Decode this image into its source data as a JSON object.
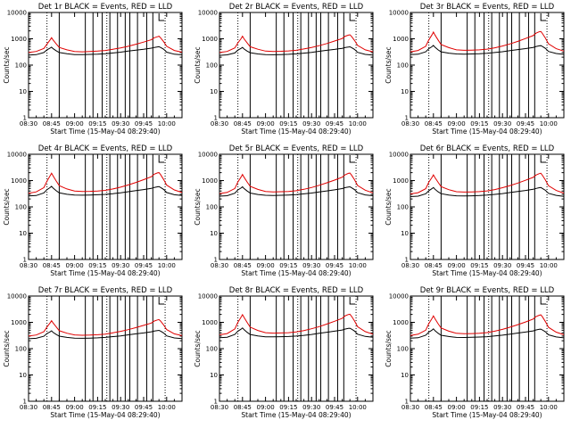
{
  "chart_data": {
    "type": "line",
    "y_scale": "log",
    "ylim": [
      1,
      10000
    ],
    "y_ticks": [
      1,
      10,
      100,
      1000,
      10000
    ],
    "y_tick_labels": [
      "1",
      "10",
      "100",
      "1000",
      "10000"
    ],
    "x_tick_labels": [
      "08:30",
      "08:45",
      "09:00",
      "09:15",
      "09:30",
      "09:45",
      "10:00"
    ],
    "xlabel": "Start Time (15-May-04 08:29:40)",
    "ylabel": "Counts/sec",
    "series_colors": {
      "black": "#000000",
      "red": "#e00000"
    },
    "x_minutes": [
      0,
      5,
      10,
      12,
      14,
      15,
      16,
      18,
      20,
      25,
      30,
      35,
      40,
      45,
      50,
      55,
      60,
      65,
      70,
      75,
      80,
      82,
      84,
      85,
      86,
      88,
      90,
      95,
      100
    ],
    "panels": [
      {
        "title": "Det 1r BLACK = Events, RED = LLD",
        "black": [
          240,
          250,
          300,
          380,
          440,
          480,
          420,
          350,
          300,
          270,
          250,
          250,
          255,
          260,
          270,
          290,
          310,
          340,
          370,
          400,
          440,
          470,
          490,
          500,
          470,
          400,
          310,
          260,
          245
        ],
        "red": [
          300,
          330,
          430,
          620,
          900,
          1100,
          900,
          640,
          470,
          380,
          330,
          320,
          330,
          340,
          360,
          400,
          450,
          520,
          620,
          750,
          920,
          1100,
          1200,
          1250,
          1100,
          780,
          520,
          360,
          310
        ]
      },
      {
        "title": "Det 2r BLACK = Events, RED = LLD",
        "black": [
          235,
          245,
          290,
          370,
          430,
          470,
          410,
          340,
          295,
          265,
          250,
          248,
          252,
          258,
          268,
          285,
          305,
          335,
          365,
          395,
          435,
          465,
          485,
          495,
          465,
          395,
          305,
          255,
          240
        ],
        "red": [
          300,
          330,
          450,
          700,
          1000,
          1250,
          1000,
          700,
          500,
          400,
          340,
          330,
          335,
          345,
          365,
          410,
          470,
          550,
          660,
          820,
          1020,
          1250,
          1380,
          1420,
          1240,
          860,
          560,
          380,
          320
        ]
      },
      {
        "title": "Det 3r BLACK = Events, RED = LLD",
        "black": [
          250,
          260,
          320,
          420,
          500,
          560,
          480,
          380,
          320,
          285,
          265,
          262,
          266,
          272,
          282,
          300,
          322,
          355,
          390,
          425,
          470,
          510,
          540,
          550,
          510,
          430,
          330,
          275,
          255
        ],
        "red": [
          320,
          360,
          520,
          900,
          1400,
          1800,
          1400,
          900,
          600,
          460,
          380,
          365,
          370,
          380,
          405,
          455,
          530,
          640,
          800,
          1020,
          1320,
          1650,
          1850,
          1900,
          1600,
          1050,
          640,
          420,
          340
        ]
      },
      {
        "title": "Det 4r BLACK = Events, RED = LLD",
        "black": [
          260,
          270,
          340,
          450,
          540,
          600,
          520,
          410,
          340,
          300,
          280,
          278,
          282,
          288,
          298,
          318,
          342,
          378,
          415,
          455,
          505,
          550,
          580,
          590,
          550,
          460,
          350,
          290,
          270
        ],
        "red": [
          330,
          370,
          540,
          950,
          1500,
          1900,
          1500,
          960,
          640,
          480,
          400,
          385,
          390,
          400,
          425,
          480,
          560,
          680,
          850,
          1080,
          1400,
          1750,
          1950,
          2000,
          1700,
          1100,
          670,
          440,
          350
        ]
      },
      {
        "title": "Det 5r BLACK = Events, RED = LLD",
        "black": [
          255,
          265,
          330,
          440,
          520,
          580,
          500,
          400,
          335,
          295,
          275,
          272,
          276,
          282,
          292,
          312,
          336,
          370,
          405,
          445,
          495,
          540,
          570,
          580,
          540,
          450,
          345,
          285,
          265
        ],
        "red": [
          320,
          355,
          500,
          880,
          1350,
          1700,
          1350,
          880,
          600,
          460,
          385,
          372,
          377,
          387,
          412,
          465,
          545,
          660,
          820,
          1040,
          1350,
          1680,
          1880,
          1930,
          1640,
          1070,
          650,
          430,
          340
        ]
      },
      {
        "title": "Det 6r BLACK = Events, RED = LLD",
        "black": [
          245,
          255,
          315,
          410,
          490,
          545,
          470,
          375,
          318,
          283,
          263,
          260,
          264,
          270,
          280,
          298,
          320,
          352,
          386,
          420,
          465,
          505,
          535,
          545,
          505,
          425,
          328,
          273,
          252
        ],
        "red": [
          310,
          345,
          490,
          860,
          1300,
          1650,
          1300,
          860,
          590,
          450,
          378,
          365,
          370,
          380,
          404,
          456,
          535,
          648,
          805,
          1020,
          1320,
          1640,
          1840,
          1890,
          1600,
          1040,
          635,
          420,
          332
        ]
      },
      {
        "title": "Det 7r BLACK = Events, RED = LLD",
        "black": [
          238,
          248,
          295,
          375,
          435,
          475,
          415,
          345,
          298,
          268,
          250,
          248,
          252,
          258,
          268,
          286,
          306,
          336,
          366,
          396,
          436,
          466,
          486,
          496,
          466,
          396,
          306,
          256,
          242
        ],
        "red": [
          300,
          330,
          440,
          660,
          950,
          1150,
          950,
          670,
          480,
          385,
          332,
          322,
          328,
          338,
          358,
          402,
          455,
          528,
          630,
          765,
          940,
          1120,
          1230,
          1270,
          1120,
          800,
          530,
          365,
          312
        ]
      },
      {
        "title": "Det 8r BLACK = Events, RED = LLD",
        "black": [
          262,
          272,
          345,
          460,
          550,
          610,
          530,
          418,
          345,
          305,
          283,
          280,
          284,
          290,
          300,
          320,
          345,
          382,
          420,
          460,
          510,
          556,
          586,
          596,
          556,
          465,
          354,
          292,
          272
        ],
        "red": [
          335,
          375,
          560,
          1000,
          1550,
          1950,
          1550,
          990,
          655,
          490,
          405,
          390,
          395,
          405,
          430,
          486,
          568,
          690,
          862,
          1095,
          1420,
          1780,
          1980,
          2040,
          1730,
          1120,
          680,
          445,
          355
        ]
      },
      {
        "title": "Det 9r BLACK = Events, RED = LLD",
        "black": [
          250,
          260,
          322,
          425,
          505,
          565,
          485,
          385,
          323,
          288,
          268,
          265,
          269,
          275,
          285,
          303,
          325,
          358,
          393,
          428,
          474,
          514,
          544,
          554,
          514,
          434,
          334,
          278,
          258
        ],
        "red": [
          318,
          355,
          505,
          890,
          1380,
          1760,
          1380,
          890,
          605,
          462,
          382,
          368,
          373,
          383,
          408,
          460,
          540,
          654,
          815,
          1035,
          1340,
          1670,
          1870,
          1920,
          1630,
          1060,
          645,
          425,
          338
        ]
      }
    ]
  }
}
